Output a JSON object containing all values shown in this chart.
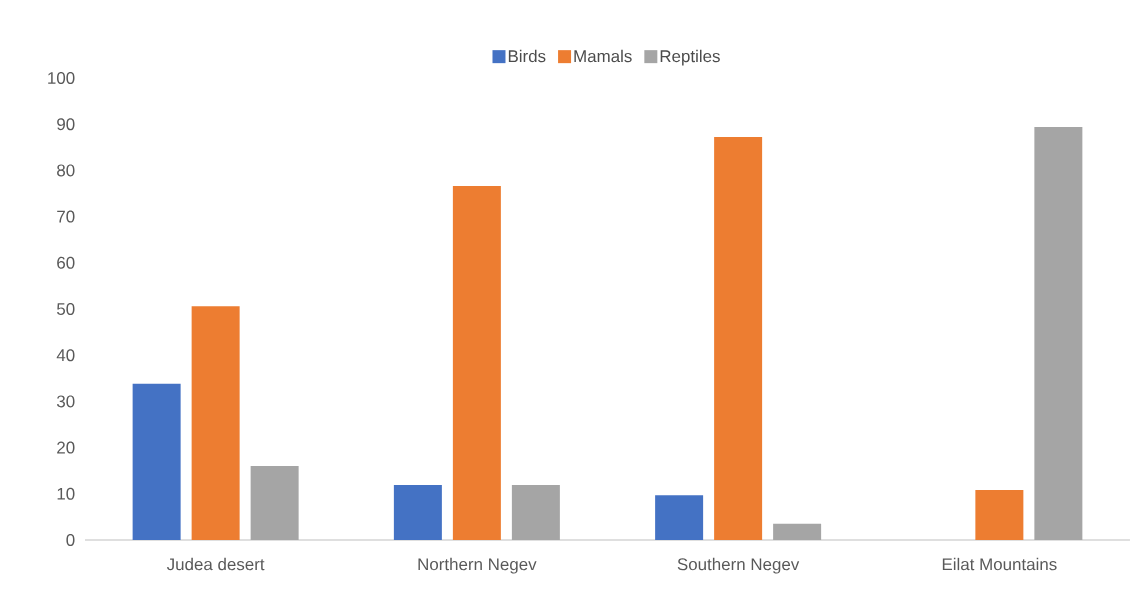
{
  "chart_data": {
    "type": "bar",
    "categories": [
      "Judea desert",
      "Northern Negev",
      "Southern Negev",
      "Eilat Mountains"
    ],
    "series": [
      {
        "name": "Birds",
        "color": "#4472c4",
        "values": [
          33.8,
          11.9,
          9.7,
          0
        ]
      },
      {
        "name": "Mamals",
        "color": "#ed7d31",
        "values": [
          50.6,
          76.6,
          87.2,
          10.8
        ]
      },
      {
        "name": "Reptiles",
        "color": "#a5a5a5",
        "values": [
          16,
          11.9,
          3.5,
          89.4
        ]
      }
    ],
    "ylim": [
      0,
      100
    ],
    "yticks": [
      0,
      10,
      20,
      30,
      40,
      50,
      60,
      70,
      80,
      90,
      100
    ],
    "legend": "top"
  }
}
